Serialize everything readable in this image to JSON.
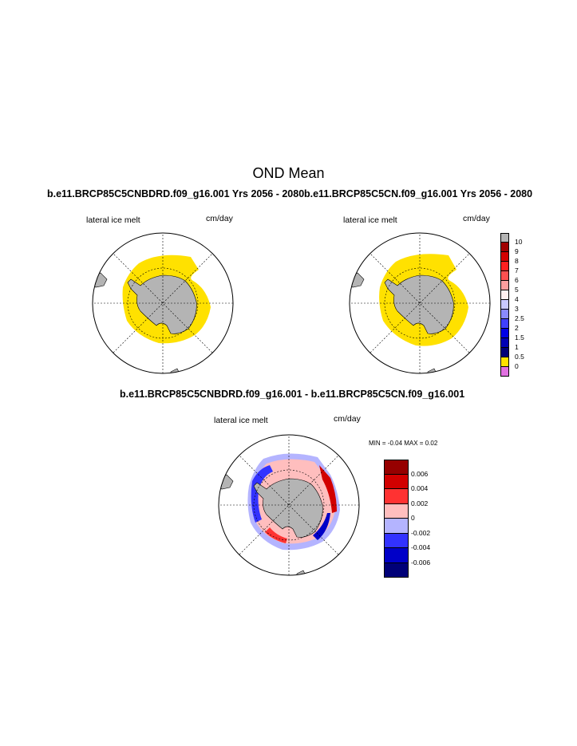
{
  "page": {
    "main_title": "OND Mean"
  },
  "colors": {
    "land": "#b4b4b4",
    "ice_melt_yellow": "#ffe100",
    "grid_line": "#000000"
  },
  "panels": {
    "left": {
      "title": "b.e11.BRCP85C5CNBDRD.f09_g16.001  Yrs 2056 - 2080",
      "label": "lateral ice melt",
      "units": "cm/day"
    },
    "right": {
      "title": "b.e11.BRCP85C5CN.f09_g16.001  Yrs 2056 - 2080",
      "label": "lateral ice melt",
      "units": "cm/day"
    },
    "diff": {
      "title": "b.e11.BRCP85C5CNBDRD.f09_g16.001 - b.e11.BRCP85C5CN.f09_g16.001",
      "label": "lateral ice melt",
      "units": "cm/day",
      "min_max": "MIN =  -0.04 MAX =   0.02"
    }
  },
  "chart_data": [
    {
      "type": "heatmap",
      "panel": "left",
      "projection": "south polar stereographic",
      "title": "b.e11.BRCP85C5CNBDRD.f09_g16.001  Yrs 2056 - 2080",
      "field": "lateral ice melt",
      "units": "cm/day",
      "dominant_level": "0 - 0.5"
    },
    {
      "type": "heatmap",
      "panel": "right",
      "projection": "south polar stereographic",
      "title": "b.e11.BRCP85C5CN.f09_g16.001  Yrs 2056 - 2080",
      "field": "lateral ice melt",
      "units": "cm/day",
      "dominant_level": "0 - 0.5"
    },
    {
      "type": "heatmap",
      "panel": "difference",
      "projection": "south polar stereographic",
      "title": "b.e11.BRCP85C5CNBDRD.f09_g16.001 - b.e11.BRCP85C5CN.f09_g16.001",
      "field": "lateral ice melt",
      "units": "cm/day",
      "min": -0.04,
      "max": 0.02
    }
  ],
  "colorbar_main": {
    "labels": [
      "10",
      "9",
      "8",
      "7",
      "6",
      "5",
      "4",
      "3",
      "2.5",
      "2",
      "1.5",
      "1",
      "0.5",
      "0"
    ],
    "colors": [
      "#b4b4b4",
      "#a00000",
      "#d40000",
      "#ff2020",
      "#ff5050",
      "#ff9e9e",
      "#fff0f0",
      "#c8c8ff",
      "#8a8aff",
      "#4040ff",
      "#0000e6",
      "#0000b4",
      "#000078",
      "#ffe100",
      "#e070e0"
    ]
  },
  "colorbar_diff": {
    "labels": [
      "0.006",
      "0.004",
      "0.002",
      "0",
      "-0.002",
      "-0.004",
      "-0.006"
    ],
    "colors": [
      "#960000",
      "#d20000",
      "#ff3232",
      "#ffbebe",
      "#b4b4ff",
      "#3232ff",
      "#0000c8",
      "#000078"
    ]
  }
}
